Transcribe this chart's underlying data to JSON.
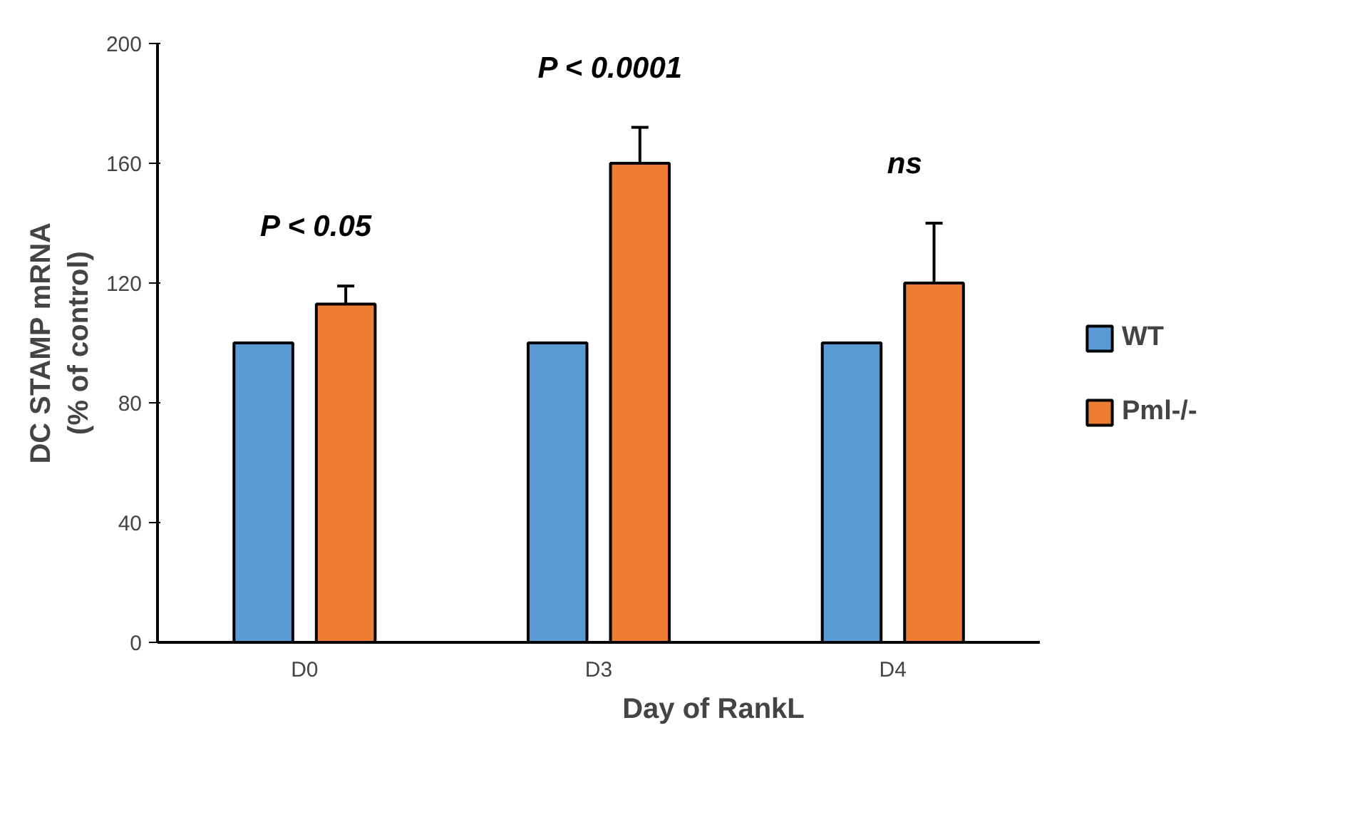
{
  "chart_data": {
    "type": "bar",
    "xlabel": "Day of RankL",
    "ylabel": "DC STAMP mRNA\n(% of control)",
    "categories": [
      "D0",
      "D3",
      "D4"
    ],
    "series": [
      {
        "name": "WT",
        "color": "#5b9bd5",
        "values": [
          100,
          100,
          100
        ]
      },
      {
        "name": "Pml-/-",
        "color": "#ed7d31",
        "values": [
          113,
          160,
          120
        ],
        "errors": [
          6,
          12,
          20
        ]
      }
    ],
    "ylim": [
      0,
      200
    ],
    "yticks": [
      0,
      40,
      80,
      120,
      160,
      200
    ],
    "grid": false,
    "legend": "right",
    "annotations": [
      "P < 0.05",
      "P < 0.0001",
      "ns"
    ]
  }
}
